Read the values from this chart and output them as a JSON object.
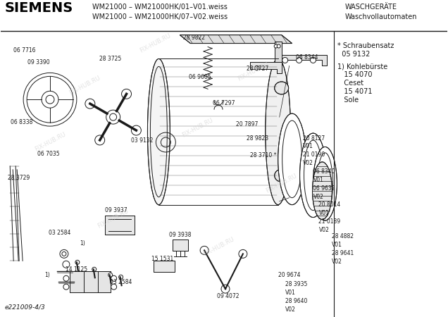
{
  "title_brand": "SIEMENS",
  "title_model_line1": "WM21000 – WM21000HK/01–V01.weiss",
  "title_model_line2": "WM21000 – WM21000HK/07–V02.weiss",
  "title_right_line1": "WASCHGERÄTE",
  "title_right_line2": "Waschvollautomaten",
  "footer_left": "e221009-4/3",
  "sidebar_star": "* Schraubensatz",
  "sidebar_star2": "  05 9132",
  "sidebar_1": "1) Kohlebürste",
  "sidebar_items": [
    "   15 4070",
    "   Ceset",
    "   15 4071",
    "   Sole"
  ],
  "bg_color": "#ffffff",
  "line_color": "#1a1a1a",
  "watermark_color": "#d0d0d0",
  "font_size_brand": 14,
  "font_size_model": 7,
  "font_size_label": 5.5,
  "font_size_right": 7,
  "font_size_sidebar": 7
}
